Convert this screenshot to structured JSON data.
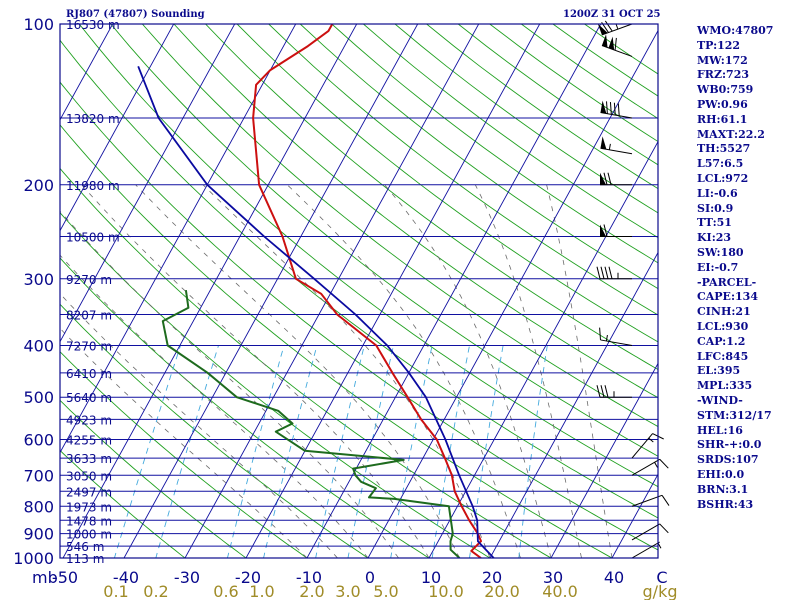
{
  "header": {
    "station_title": "RJ807 (47807) Sounding",
    "time_title": "1200Z 31 OCT 25"
  },
  "colors": {
    "frame": "#0a0a8c",
    "isobar": "#1010a0",
    "isotherm": "#1010a0",
    "dry_adiabat": "#20a020",
    "moist_adiabat": "#6b6b6b",
    "mixing_ratio": "#44aadd",
    "temperature": "#cc1010",
    "dewpoint": "#1e6b1e",
    "parcel": "#0a0aa0",
    "wind_barb": "#000000",
    "mixing_ratio_label": "#a08c28"
  },
  "indices": [
    "WMO:47807",
    "TP:122",
    "MW:172",
    "FRZ:723",
    "WB0:759",
    "PW:0.96",
    "RH:61.1",
    "MAXT:22.2",
    "TH:5527",
    "L57:6.5",
    "LCL:972",
    "LI:-0.6",
    "SI:0.9",
    "TT:51",
    "KI:23",
    "SW:180",
    "EI:-0.7",
    "-PARCEL-",
    "CAPE:134",
    "CINH:21",
    "LCL:930",
    "CAP:1.2",
    "LFC:845",
    "EL:395",
    "MPL:335",
    "-WIND-",
    "STM:312/17",
    "HEL:16",
    "SHR-+:0.0",
    "SRDS:107",
    "EHI:0.0",
    "BRN:3.1",
    "BSHR:43"
  ],
  "chart_data": {
    "type": "skew-t",
    "pressure_axis": {
      "unit": "mb",
      "range": [
        1000,
        100
      ],
      "ticks": [
        "100",
        "200",
        "300",
        "400",
        "500",
        "600",
        "700",
        "800",
        "900",
        "1000"
      ],
      "unit_label": "mb"
    },
    "temperature_axis": {
      "unit": "C",
      "ticks": [
        "-50",
        "-40",
        "-30",
        "-20",
        "-10",
        "0",
        "10",
        "20",
        "30",
        "40"
      ],
      "unit_label": "C"
    },
    "mixing_ratio_axis": {
      "unit": "g/kg",
      "ticks": [
        "0.1",
        "0.2",
        "0.6",
        "1.0",
        "2.0",
        "3.0",
        "5.0",
        "10.0",
        "20.0",
        "40.0"
      ],
      "unit_label": "g/kg"
    },
    "height_labels": [
      {
        "p": 100,
        "text": "16530 m"
      },
      {
        "p": 150,
        "text": "13820 m"
      },
      {
        "p": 200,
        "text": "11980 m"
      },
      {
        "p": 250,
        "text": "10500 m"
      },
      {
        "p": 300,
        "text": "9270 m"
      },
      {
        "p": 350,
        "text": "8207 m"
      },
      {
        "p": 400,
        "text": "7270 m"
      },
      {
        "p": 450,
        "text": "6410 m"
      },
      {
        "p": 500,
        "text": "5640 m"
      },
      {
        "p": 550,
        "text": "4923 m"
      },
      {
        "p": 600,
        "text": "4255 m"
      },
      {
        "p": 650,
        "text": "3633 m"
      },
      {
        "p": 700,
        "text": "3050 m"
      },
      {
        "p": 750,
        "text": "2497 m"
      },
      {
        "p": 800,
        "text": "1973 m"
      },
      {
        "p": 850,
        "text": "1478 m"
      },
      {
        "p": 900,
        "text": "1000 m"
      },
      {
        "p": 950,
        "text": "546 m"
      },
      {
        "p": 1000,
        "text": "113 m"
      }
    ],
    "series": [
      {
        "name": "",
        "role": "temperature",
        "points": [
          [
            1000,
            18.5
          ],
          [
            970,
            16.3
          ],
          [
            930,
            17.0
          ],
          [
            900,
            15.8
          ],
          [
            850,
            13.2
          ],
          [
            800,
            10.7
          ],
          [
            750,
            8.2
          ],
          [
            700,
            6.3
          ],
          [
            650,
            3.6
          ],
          [
            600,
            0.6
          ],
          [
            550,
            -3.8
          ],
          [
            500,
            -8.0
          ],
          [
            450,
            -12.7
          ],
          [
            400,
            -17.8
          ],
          [
            350,
            -27.0
          ],
          [
            320,
            -31.5
          ],
          [
            300,
            -37.0
          ],
          [
            250,
            -43.0
          ],
          [
            200,
            -51.5
          ],
          [
            150,
            -58.5
          ],
          [
            130,
            -61.0
          ],
          [
            122,
            -60.0
          ],
          [
            110,
            -56.0
          ],
          [
            103,
            -54.0
          ],
          [
            100,
            -54.0
          ]
        ]
      },
      {
        "name": "",
        "role": "dewpoint",
        "points": [
          [
            1000,
            15.0
          ],
          [
            965,
            12.8
          ],
          [
            930,
            12.0
          ],
          [
            900,
            11.7
          ],
          [
            850,
            10.2
          ],
          [
            800,
            8.6
          ],
          [
            775,
            -1.0
          ],
          [
            770,
            -5.3
          ],
          [
            740,
            -5.0
          ],
          [
            720,
            -8.0
          ],
          [
            700,
            -9.5
          ],
          [
            680,
            -10.5
          ],
          [
            655,
            -3.0
          ],
          [
            630,
            -20.0
          ],
          [
            580,
            -26.5
          ],
          [
            560,
            -24.5
          ],
          [
            530,
            -28.0
          ],
          [
            500,
            -36.0
          ],
          [
            450,
            -43.0
          ],
          [
            400,
            -52.0
          ],
          [
            360,
            -55.0
          ],
          [
            340,
            -52.0
          ],
          [
            315,
            -54.0
          ]
        ]
      },
      {
        "name": "",
        "role": "parcel",
        "points": [
          [
            1000,
            20.6
          ],
          [
            930,
            16.5
          ],
          [
            850,
            14.5
          ],
          [
            800,
            12.5
          ],
          [
            700,
            7.5
          ],
          [
            600,
            2.0
          ],
          [
            500,
            -5.0
          ],
          [
            450,
            -10.0
          ],
          [
            400,
            -16.0
          ],
          [
            350,
            -24.0
          ],
          [
            300,
            -34.0
          ],
          [
            250,
            -46.0
          ],
          [
            200,
            -60.0
          ],
          [
            150,
            -74.0
          ],
          [
            120,
            -82.0
          ]
        ]
      }
    ],
    "wind_barbs": [
      {
        "p": 100,
        "dir": 250,
        "kt": 75
      },
      {
        "p": 115,
        "dir": 290,
        "kt": 110
      },
      {
        "p": 150,
        "dir": 280,
        "kt": 90
      },
      {
        "p": 175,
        "dir": 280,
        "kt": 55
      },
      {
        "p": 200,
        "dir": 270,
        "kt": 70
      },
      {
        "p": 250,
        "dir": 270,
        "kt": 60
      },
      {
        "p": 300,
        "dir": 270,
        "kt": 45
      },
      {
        "p": 400,
        "dir": 280,
        "kt": 15
      },
      {
        "p": 500,
        "dir": 270,
        "kt": 35
      },
      {
        "p": 650,
        "dir": 40,
        "kt": 15
      },
      {
        "p": 700,
        "dir": 60,
        "kt": 15
      },
      {
        "p": 800,
        "dir": 70,
        "kt": 10
      },
      {
        "p": 925,
        "dir": 60,
        "kt": 10
      },
      {
        "p": 1000,
        "dir": 60,
        "kt": 5
      }
    ],
    "grid": true
  }
}
